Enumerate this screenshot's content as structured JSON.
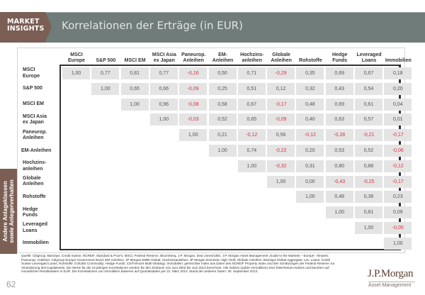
{
  "header": {
    "brand_line1": "MARKET",
    "brand_line2": "INSIGHTS",
    "title": "Korrelationen der Erträge (in EUR)"
  },
  "side_tab": {
    "line1": "Andere Anlageklassen",
    "line2": "sowie Anlegerverhalten"
  },
  "colors": {
    "header_bg": "#6f7c79",
    "brand_bg": "#7b5e54",
    "cell_bg": "#e4e4e4",
    "negative": "#e0303a",
    "positive": "#555555"
  },
  "chart_data": {
    "type": "table",
    "title": "Korrelationen der Erträge (in EUR)",
    "columns": [
      "MSCI Europe",
      "S&P 500",
      "MSCI EM",
      "MSCI Asia ex Japan",
      "Paneurop. Anleihen",
      "EM-Anleihen",
      "Hochzins-anleihen",
      "Globale Anleihen",
      "Rohstoffe",
      "Hedge Funds",
      "Leveraged Loans",
      "Immobilien"
    ],
    "rows": [
      {
        "label": "MSCI Europe",
        "values": [
          "1,00",
          "0,77",
          "0,81",
          "0,77",
          "-0,16",
          "0,50",
          "0,71",
          "-0,29",
          "0,35",
          "0,69",
          "0,67",
          "0,18"
        ]
      },
      {
        "label": "S&P 500",
        "values": [
          "1,00",
          "0,65",
          "0,66",
          "-0,09",
          "0,25",
          "0,51",
          "0,12",
          "0,32",
          "0,43",
          "0,54",
          "0,20"
        ]
      },
      {
        "label": "MSCI EM",
        "values": [
          "1,00",
          "0,96",
          "-0,08",
          "0,58",
          "0,67",
          "-0,17",
          "0,48",
          "0,69",
          "0,61",
          "0,04"
        ]
      },
      {
        "label": "MSCI Asia ex Japan",
        "values": [
          "1,00",
          "-0,03",
          "0,52",
          "0,65",
          "-0,09",
          "0,40",
          "0,63",
          "0,57",
          "0,01"
        ]
      },
      {
        "label": "Paneurop. Anleihen",
        "values": [
          "1,00",
          "0,21",
          "-0,12",
          "0,56",
          "-0,12",
          "-0,28",
          "-0,21",
          "-0,17"
        ]
      },
      {
        "label": "EM-Anleihen",
        "values": [
          "1,00",
          "0,74",
          "-0,22",
          "0,20",
          "0,53",
          "0,52",
          "-0,06"
        ]
      },
      {
        "label": "Hochzins-anleihen",
        "values": [
          "1,00",
          "-0,32",
          "0,31",
          "0,80",
          "0,88",
          "-0,12"
        ]
      },
      {
        "label": "Globale Anleihen",
        "values": [
          "1,00",
          "0,00",
          "-0,43",
          "-0,25",
          "-0,17"
        ]
      },
      {
        "label": "Rohstoffe",
        "values": [
          "1,00",
          "0,48",
          "0,38",
          "0,23"
        ]
      },
      {
        "label": "Hedge Funds",
        "values": [
          "1,00",
          "0,81",
          "0,09"
        ]
      },
      {
        "label": "Leveraged Loans",
        "values": [
          "1,00",
          "-0,05"
        ]
      },
      {
        "label": "Immobilien",
        "values": [
          "1,00"
        ]
      }
    ],
    "layout": "upper-triangular correlation matrix; negative values shown in red"
  },
  "table": {
    "col_headers": [
      "MSCI\nEurope",
      "S&P 500",
      "MSCI EM",
      "MSCI Asia\nex Japan",
      "Paneurop.\nAnleihen",
      "EM-\nAnleihen",
      "Hochzins-\nanleihen",
      "Globale\nAnleihen",
      "Rohstoffe",
      "Hedge\nFunds",
      "Leveraged\nLoans",
      "Immobilien"
    ],
    "row_headers": [
      "MSCI\nEurope",
      "S&P 500",
      "MSCI EM",
      "MSCI Asia\nex Japan",
      "Paneurop.\nAnleihen",
      "EM-Anleihen",
      "Hochzins-\nanleihen",
      "Globale\nAnleihen",
      "Rohstoffe",
      "Hedge\nFunds",
      "Leveraged\nLoans",
      "Immobilien"
    ]
  },
  "footnote": "Quelle: Citigroup, Barclays, Credit Suisse, NCREIF, Standard & Poor's, MSCI, Federal Reserve, Bloomberg, J.P. Morgan, Dow Jones/UBS, J.P. Morgan Asset Management ‚Guide to the Markets – Europe'. Hinweis: Paneurop. Anleihen: Citigroup Europe Government Bond; EM-Anleihen: JP Morgan EMBI Global; Hochzinsanleihen: JP Morgan Domestic High Yield; Globale Anleihen: Barclays Global Aggregate; Lev. Loans: Credit Suisse Leveraged Loans; Rohstoffe: DJ/UBS Commodity; Hedge Funds: CS/Tremont Multi-Strategy; Immobilien: gemischter Index aus Daten des NCREIF Property Index und den Schätzungen der Federal Reserve zur Veränderung des Kapitalwerts. Die Werte für die 10-jährigen Korrelationen werden für den Zeitraum von Juni 2003 bis Juni 2013 berechnet. Alle Indizes (außer Immobilien) sind Total-Return-Indizes und beruhen auf monatlichen Renditedaten in EUR. Die Korrelationen von Immobilien basieren auf Quartalsdaten per 31. März 2013. Stand der anderen Daten: 30. September 2013.",
  "page_number": "62",
  "logo": {
    "name": "J.P.Morgan",
    "subtitle": "Asset Management"
  }
}
